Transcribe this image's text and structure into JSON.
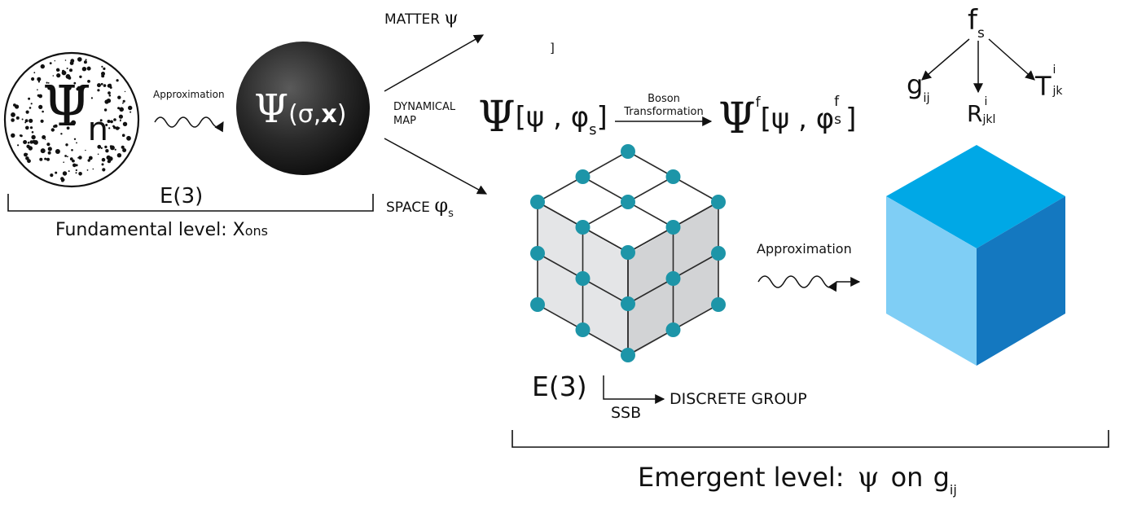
{
  "fundamental": {
    "psi_symbol": "Ψ",
    "psi_subscript": "n",
    "approximation_label": "Approximation",
    "field_symbol": "Ψ",
    "field_args": "(σ,",
    "field_x": "x",
    "field_close": ")",
    "group_label": "E(3)",
    "level_label_prefix": "Fundamental level: X",
    "level_label_sub": "ons"
  },
  "map": {
    "matter_label": "MATTER",
    "matter_symbol": "ψ",
    "stray_bracket": "]",
    "dynamical_label_line1": "DYNAMICAL",
    "dynamical_label_line2": "MAP",
    "space_label": "SPACE",
    "space_symbol": "φ",
    "space_sub": "s",
    "functional": {
      "symbol": "Ψ",
      "open": "[ψ , φ",
      "sub": "s",
      "close": "]"
    },
    "boson_label_line1": "Boson",
    "boson_label_line2": "Transformation",
    "transformed": {
      "symbol": "Ψ",
      "sup": "f",
      "open": "[ψ , φ",
      "inner_sup": "f",
      "inner_sub": "s",
      "close": "]"
    }
  },
  "tree": {
    "root": "f",
    "root_sub": "s",
    "metric": "g",
    "metric_sub": "ij",
    "curvature": "R",
    "curvature_sup": "i",
    "curvature_sub": "jkl",
    "torsion": "T",
    "torsion_sup": "i",
    "torsion_sub": "jk"
  },
  "emergent": {
    "group_label": "E(3)",
    "ssb_label": "SSB",
    "discrete_label": "DISCRETE GROUP",
    "approximation_label": "Approximation",
    "level_label_prefix": "Emergent level:",
    "level_symbol": "ψ",
    "level_on": "on",
    "level_g": "g",
    "level_g_sub": "ij"
  },
  "colors": {
    "lattice_node": "#1d95a8",
    "cube_top": "#00a8e6",
    "cube_left": "#7fcef5",
    "cube_right": "#1478c0",
    "lattice_face": "#e2e3e5"
  }
}
